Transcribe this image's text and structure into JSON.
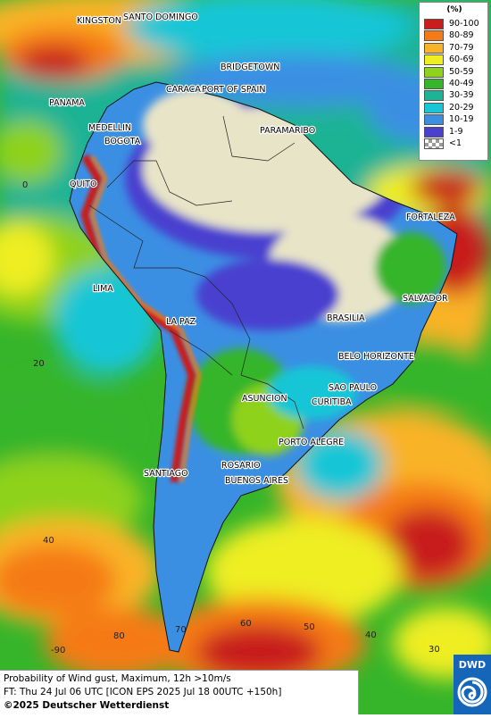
{
  "legend": {
    "title": "(%)",
    "items": [
      {
        "label": "90-100",
        "color": "#c81e1e"
      },
      {
        "label": "80-89",
        "color": "#f57a16"
      },
      {
        "label": "70-79",
        "color": "#f9b327"
      },
      {
        "label": "60-69",
        "color": "#eeee22"
      },
      {
        "label": "50-59",
        "color": "#8ed21e"
      },
      {
        "label": "40-49",
        "color": "#36b52a"
      },
      {
        "label": "30-39",
        "color": "#1fb395"
      },
      {
        "label": "20-29",
        "color": "#19c6d6"
      },
      {
        "label": "10-19",
        "color": "#3b8fe3"
      },
      {
        "label": "1-9",
        "color": "#4a3fcf"
      },
      {
        "label": "<1",
        "color": "checker"
      }
    ]
  },
  "cities": [
    {
      "name": "KINGSTON"
    },
    {
      "name": "SANTO DOMINGO"
    },
    {
      "name": "BRIDGETOWN"
    },
    {
      "name": "CARACAS"
    },
    {
      "name": "PORT OF SPAIN"
    },
    {
      "name": "PANAMA"
    },
    {
      "name": "MEDELLIN"
    },
    {
      "name": "BOGOTA"
    },
    {
      "name": "PARAMARIBO"
    },
    {
      "name": "QUITO"
    },
    {
      "name": "FORTALEZA"
    },
    {
      "name": "LIMA"
    },
    {
      "name": "SALVADOR"
    },
    {
      "name": "BRASILIA"
    },
    {
      "name": "LA PAZ"
    },
    {
      "name": "BELO HORIZONTE"
    },
    {
      "name": "SAO PAULO"
    },
    {
      "name": "ASUNCION"
    },
    {
      "name": "CURITIBA"
    },
    {
      "name": "PORTO ALEGRE"
    },
    {
      "name": "ROSARIO"
    },
    {
      "name": "SANTIAGO"
    },
    {
      "name": "BUENOS AIRES"
    }
  ],
  "lat_labels": [
    "0",
    "20",
    "40"
  ],
  "lon_labels": [
    "-90",
    "80",
    "70",
    "60",
    "50",
    "40",
    "30"
  ],
  "caption": {
    "line1": "Probability of Wind gust, Maximum, 12h >10m/s",
    "line2": "FT: Thu 24 Jul 06 UTC [ICON EPS 2025 Jul 18 00UTC +150h]",
    "copyright": "©2025 Deutscher Wetterdienst"
  },
  "logo": {
    "text": "DWD"
  }
}
